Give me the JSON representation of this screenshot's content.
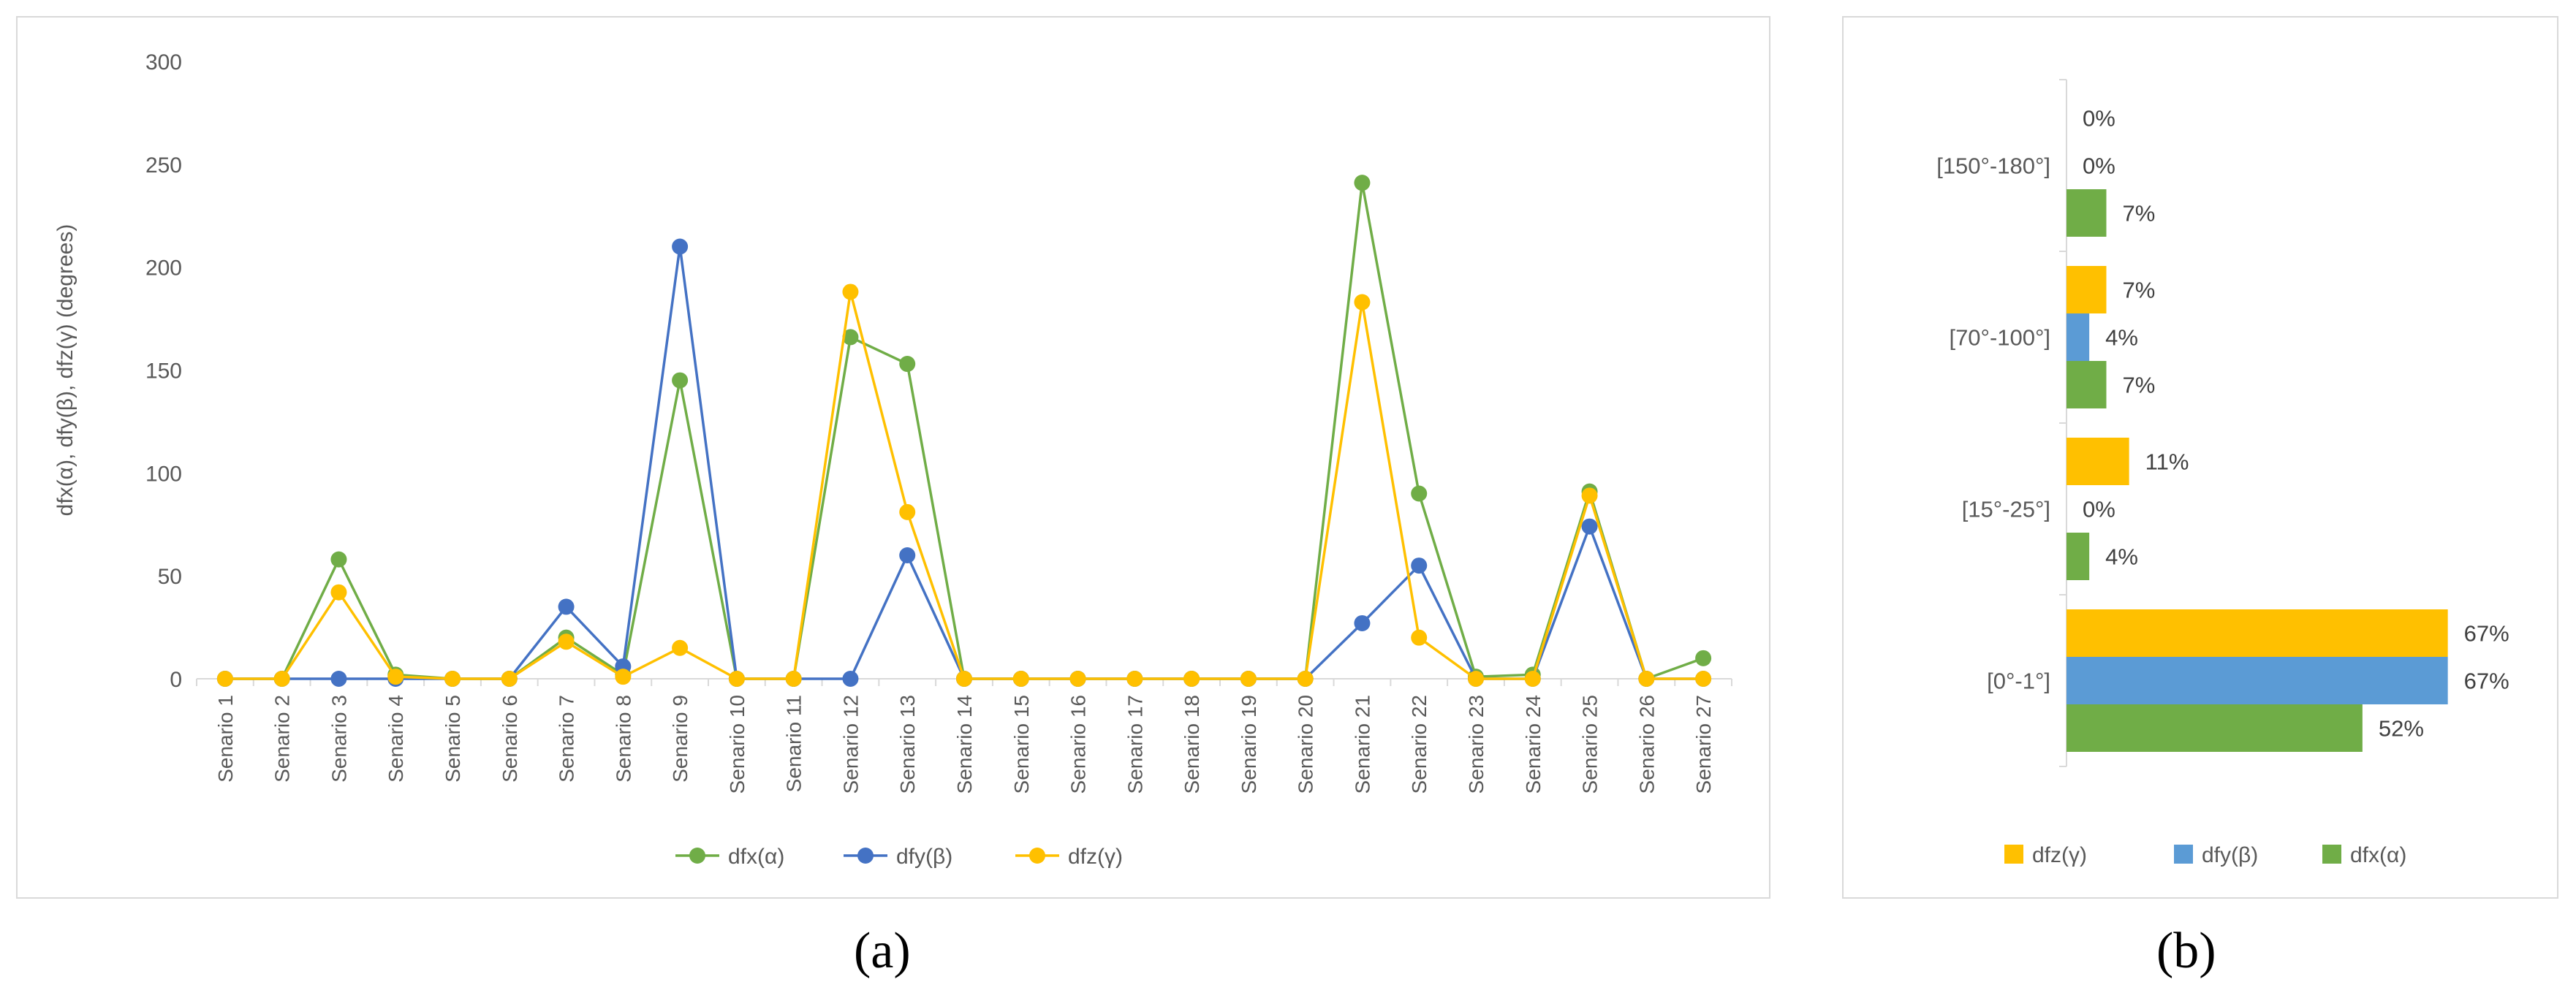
{
  "chart_data": [
    {
      "type": "line",
      "panel_label": "(a)",
      "ylabel": "dfx(α),  dfy(β),  dfz(γ) (degrees)",
      "ylim": [
        0,
        300
      ],
      "yticks": [
        0,
        50,
        100,
        150,
        200,
        250,
        300
      ],
      "grid": false,
      "legend_position": "bottom",
      "categories": [
        "Senario 1",
        "Senario 2",
        "Senario 3",
        "Senario 4",
        "Senario 5",
        "Senario 6",
        "Senario 7",
        "Senario 8",
        "Senario 9",
        "Senario 10",
        "Senario 11",
        "Senario 12",
        "Senario 13",
        "Senario 14",
        "Senario 15",
        "Senario 16",
        "Senario 17",
        "Senario 18",
        "Senario 19",
        "Senario 20",
        "Senario 21",
        "Senario 22",
        "Senario 23",
        "Senario 24",
        "Senario 25",
        "Senario 26",
        "Senario 27"
      ],
      "series": [
        {
          "name": "dfx(α)",
          "color": "#70ad47",
          "values": [
            0,
            0,
            58,
            2,
            0,
            0,
            20,
            2,
            145,
            0,
            0,
            166,
            153,
            0,
            0,
            0,
            0,
            0,
            0,
            0,
            241,
            90,
            1,
            2,
            91,
            0,
            10
          ]
        },
        {
          "name": "dfy(β)",
          "color": "#4472c4",
          "values": [
            0,
            0,
            0,
            0,
            0,
            0,
            35,
            6,
            210,
            0,
            0,
            0,
            60,
            0,
            0,
            0,
            0,
            0,
            0,
            0,
            27,
            55,
            0,
            0,
            74,
            0,
            0
          ]
        },
        {
          "name": "dfz(γ)",
          "color": "#ffc000",
          "values": [
            0,
            0,
            42,
            1,
            0,
            0,
            18,
            1,
            15,
            0,
            0,
            188,
            81,
            0,
            0,
            0,
            0,
            0,
            0,
            0,
            183,
            20,
            0,
            0,
            89,
            0,
            0
          ]
        }
      ]
    },
    {
      "type": "bar",
      "orientation": "horizontal",
      "panel_label": "(b)",
      "grid": false,
      "legend_position": "bottom",
      "categories": [
        "[150°-180°]",
        "[70°-100°]",
        "[15°-25°]",
        "[0°-1°]"
      ],
      "xlim": [
        0,
        70
      ],
      "series": [
        {
          "name": "dfz(γ)",
          "color": "#ffc000",
          "values": [
            0,
            7,
            11,
            67
          ],
          "labels": [
            "0%",
            "7%",
            "11%",
            "67%"
          ]
        },
        {
          "name": "dfy(β)",
          "color": "#5b9bd5",
          "values": [
            0,
            4,
            0,
            67
          ],
          "labels": [
            "0%",
            "4%",
            "0%",
            "67%"
          ]
        },
        {
          "name": "dfx(α)",
          "color": "#70ad47",
          "values": [
            7,
            7,
            4,
            52
          ],
          "labels": [
            "7%",
            "7%",
            "4%",
            "52%"
          ]
        }
      ]
    }
  ]
}
